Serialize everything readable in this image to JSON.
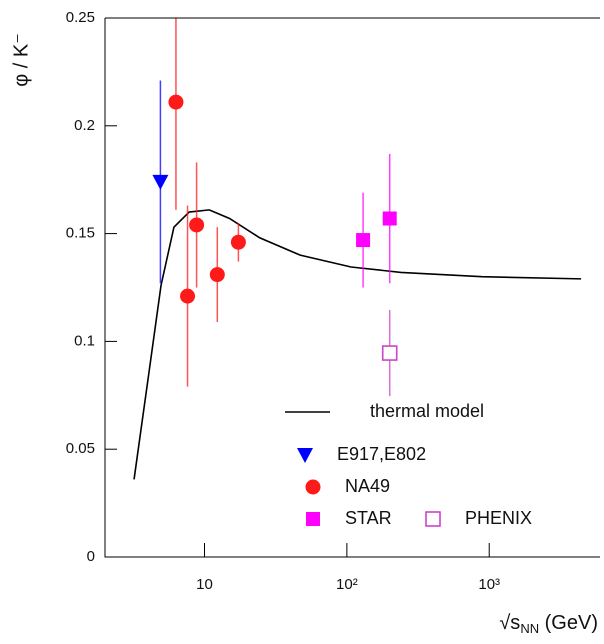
{
  "chart_data": {
    "type": "scatter",
    "ylabel": "φ / K⁻",
    "xlabel": [
      "√s",
      "NN",
      " (GeV)"
    ],
    "xscale": "log",
    "xlim": [
      2,
      6000
    ],
    "xticks": [
      {
        "value": 10,
        "label": "10"
      },
      {
        "value": 100,
        "label": "10²"
      },
      {
        "value": 1000,
        "label": "10³"
      }
    ],
    "ylim": [
      0,
      0.25
    ],
    "yticks": [
      0,
      0.05,
      0.1,
      0.15,
      0.2,
      0.25
    ],
    "grid": false,
    "legend": "lower right",
    "series": [
      {
        "name": "thermal model",
        "marker": "line",
        "color": "#000000",
        "x": [
          3.2,
          4.1,
          4.95,
          6.1,
          7.8,
          10.8,
          15,
          24.5,
          47,
          107,
          240,
          890,
          4420
        ],
        "values": [
          0.036,
          0.087,
          0.126,
          0.153,
          0.16,
          0.161,
          0.157,
          0.148,
          0.14,
          0.1345,
          0.132,
          0.13,
          0.129
        ]
      },
      {
        "name": "E917,E802",
        "marker": "triangle-down",
        "color": "#0000ff",
        "x": [
          4.9
        ],
        "values": [
          0.174
        ],
        "errors": [
          0.047
        ]
      },
      {
        "name": "NA49",
        "marker": "circle",
        "color": "#ff1a1a",
        "x": [
          6.3,
          7.6,
          8.8,
          12.3,
          17.3
        ],
        "values": [
          0.211,
          0.121,
          0.154,
          0.131,
          0.146
        ],
        "errors": [
          0.05,
          0.042,
          0.029,
          0.022,
          0.009
        ]
      },
      {
        "name": "STAR",
        "marker": "square",
        "color": "#ff00ff",
        "x": [
          130,
          200
        ],
        "values": [
          0.147,
          0.157
        ],
        "errors": [
          0.022,
          0.03
        ]
      },
      {
        "name": "PHENIX",
        "marker": "square-open",
        "color": "#cc44cc",
        "x": [
          200
        ],
        "values": [
          0.0946
        ],
        "errors": [
          0.02
        ]
      }
    ]
  }
}
